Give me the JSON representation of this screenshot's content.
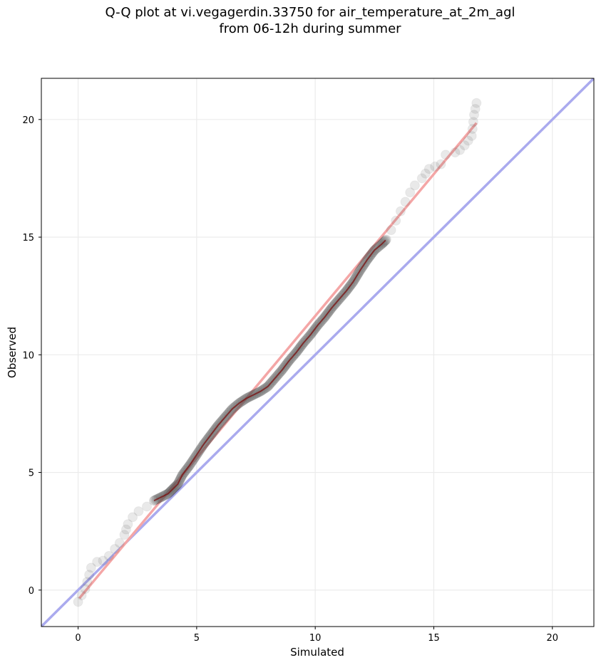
{
  "chart_data": {
    "type": "scatter",
    "title": "Q-Q plot at vi.vegagerdin.33750 for air_temperature_at_2m_agl",
    "subtitle": "from 06-12h during summer",
    "xlabel": "Simulated",
    "ylabel": "Observed",
    "xlim": [
      -1.55,
      21.75
    ],
    "ylim": [
      -1.55,
      21.75
    ],
    "xticks": [
      0,
      5,
      10,
      15,
      20
    ],
    "yticks": [
      0,
      5,
      10,
      15,
      20
    ],
    "grid": true,
    "reference_line": {
      "color": "#aaaaee",
      "description": "y = x"
    },
    "fit_line": {
      "color": "#f4a6a6",
      "x": [
        0.05,
        16.8
      ],
      "y": [
        -0.35,
        19.85
      ]
    },
    "point_color": "#555555",
    "dense_line_color": "#7a0d0d",
    "quantiles": {
      "x": [
        0.0,
        0.3,
        0.55,
        0.8,
        1.05,
        1.3,
        1.55,
        1.75,
        1.95,
        2.1,
        2.3,
        2.55,
        2.9,
        3.2,
        3.5,
        3.8,
        4.0,
        4.2,
        4.4,
        4.7,
        5.0,
        5.3,
        5.6,
        5.9,
        6.2,
        6.5,
        6.8,
        7.1,
        7.4,
        7.7,
        8.0,
        8.3,
        8.6,
        8.9,
        9.2,
        9.5,
        9.8,
        10.1,
        10.4,
        10.7,
        11.0,
        11.3,
        11.6,
        11.9,
        12.2,
        12.5,
        12.8,
        13.0,
        13.2,
        13.4,
        13.6,
        13.8,
        14.0,
        14.2,
        14.5,
        14.8,
        15.3,
        15.5,
        15.9,
        16.1,
        16.3,
        16.6,
        16.7,
        16.8
      ],
      "y": [
        -0.5,
        0.05,
        0.95,
        1.2,
        1.25,
        1.45,
        1.75,
        2.0,
        2.35,
        2.8,
        3.1,
        3.35,
        3.55,
        3.8,
        3.95,
        4.1,
        4.3,
        4.5,
        4.9,
        5.3,
        5.75,
        6.2,
        6.6,
        7.0,
        7.35,
        7.7,
        7.95,
        8.15,
        8.3,
        8.45,
        8.65,
        9.0,
        9.35,
        9.75,
        10.1,
        10.5,
        10.85,
        11.25,
        11.6,
        12.0,
        12.35,
        12.7,
        13.1,
        13.6,
        14.05,
        14.45,
        14.7,
        14.9,
        15.3,
        15.7,
        16.1,
        16.5,
        16.9,
        17.2,
        17.5,
        17.9,
        18.1,
        18.5,
        18.6,
        18.7,
        18.9,
        19.3,
        20.2,
        20.7
      ]
    }
  }
}
